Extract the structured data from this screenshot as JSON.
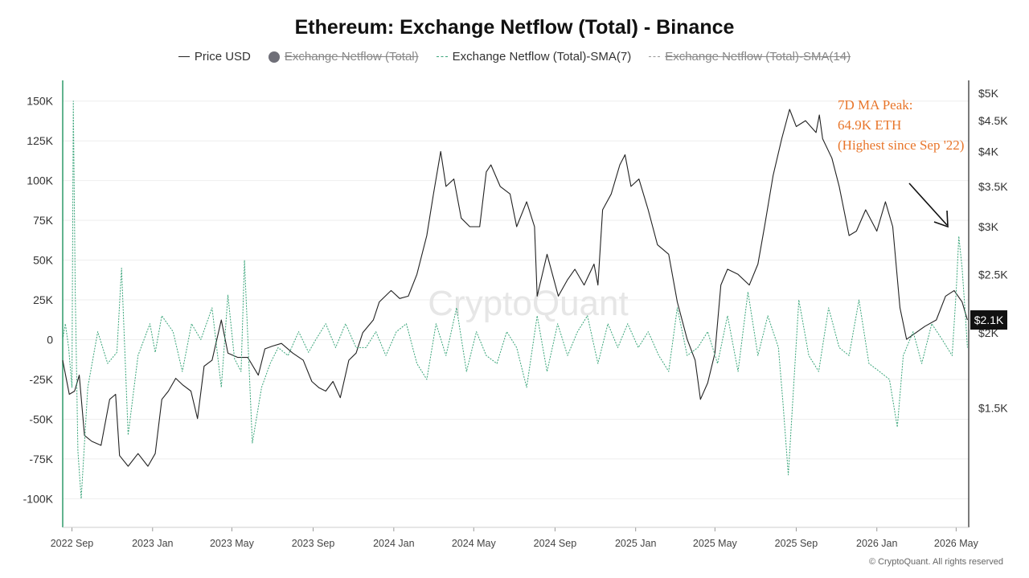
{
  "chart_data": {
    "type": "line",
    "title": "Ethereum: Exchange Netflow (Total) - Binance",
    "legend": [
      {
        "key": "price",
        "label": "Price USD",
        "style": "solid-line",
        "color": "#222222",
        "hidden": false
      },
      {
        "key": "netflow",
        "label": "Exchange Netflow (Total)",
        "style": "dot",
        "color": "#6f6f78",
        "hidden": true
      },
      {
        "key": "sma7",
        "label": "Exchange Netflow (Total)-SMA(7)",
        "style": "dashed-line",
        "color": "#3aa57a",
        "hidden": false
      },
      {
        "key": "sma14",
        "label": "Exchange Netflow (Total)-SMA(14)",
        "style": "dashed-line",
        "color": "#999999",
        "hidden": true
      }
    ],
    "legend_position": "top-center",
    "left_axis": {
      "ticks": [
        150000,
        125000,
        100000,
        75000,
        50000,
        25000,
        0,
        -25000,
        -50000,
        -75000,
        -100000
      ],
      "tick_labels": [
        "150K",
        "125K",
        "100K",
        "75K",
        "50K",
        "25K",
        "0",
        "-25K",
        "-50K",
        "-75K",
        "-100K"
      ],
      "range": [
        -118000,
        163000
      ]
    },
    "right_axis": {
      "scale": "log",
      "ticks": [
        5000,
        4500,
        4000,
        3500,
        3000,
        2500,
        2000,
        1500
      ],
      "tick_labels": [
        "$5K",
        "$4.5K",
        "$4K",
        "$3.5K",
        "$3K",
        "$2.5K",
        "$2K",
        "$1.5K"
      ],
      "range": [
        950,
        5250
      ]
    },
    "x_axis": {
      "range": [
        "2022-08-18",
        "2026-05-20"
      ],
      "ticks": [
        "2022-09-01",
        "2023-01-01",
        "2023-05-01",
        "2023-09-01",
        "2024-01-01",
        "2024-05-01",
        "2024-09-01",
        "2025-01-01",
        "2025-05-01",
        "2025-09-01",
        "2026-01-01",
        "2026-05-01"
      ],
      "tick_labels": [
        "2022 Sep",
        "2023 Jan",
        "2023 May",
        "2023 Sep",
        "2024 Jan",
        "2024 May",
        "2024 Sep",
        "2025 Jan",
        "2025 May",
        "2025 Sep",
        "2026 Jan",
        "2026 May"
      ]
    },
    "grid": true,
    "current_price_label": "$2.1K",
    "annotation": {
      "lines": [
        "7D MA Peak:",
        "64.9K ETH",
        "(Highest since Sep '22)"
      ],
      "color": "#e8752a"
    },
    "series": [
      {
        "name": "Price USD",
        "axis": "right",
        "color": "#222222",
        "x": [
          "2022-08-18",
          "2022-08-28",
          "2022-09-05",
          "2022-09-12",
          "2022-09-20",
          "2022-10-01",
          "2022-10-15",
          "2022-10-28",
          "2022-11-06",
          "2022-11-12",
          "2022-11-25",
          "2022-12-10",
          "2022-12-25",
          "2023-01-05",
          "2023-01-15",
          "2023-01-25",
          "2023-02-05",
          "2023-02-15",
          "2023-02-28",
          "2023-03-10",
          "2023-03-20",
          "2023-04-01",
          "2023-04-15",
          "2023-04-25",
          "2023-05-10",
          "2023-05-25",
          "2023-06-10",
          "2023-06-20",
          "2023-07-01",
          "2023-07-15",
          "2023-08-01",
          "2023-08-17",
          "2023-08-30",
          "2023-09-10",
          "2023-09-20",
          "2023-10-01",
          "2023-10-12",
          "2023-10-25",
          "2023-11-05",
          "2023-11-15",
          "2023-12-01",
          "2023-12-10",
          "2023-12-28",
          "2024-01-10",
          "2024-01-23",
          "2024-02-05",
          "2024-02-20",
          "2024-03-01",
          "2024-03-12",
          "2024-03-20",
          "2024-04-01",
          "2024-04-12",
          "2024-04-25",
          "2024-05-10",
          "2024-05-20",
          "2024-05-27",
          "2024-06-10",
          "2024-06-25",
          "2024-07-05",
          "2024-07-20",
          "2024-08-01",
          "2024-08-05",
          "2024-08-20",
          "2024-09-06",
          "2024-09-20",
          "2024-10-01",
          "2024-10-15",
          "2024-10-30",
          "2024-11-05",
          "2024-11-12",
          "2024-11-25",
          "2024-12-08",
          "2024-12-16",
          "2024-12-25",
          "2025-01-06",
          "2025-01-20",
          "2025-02-03",
          "2025-02-20",
          "2025-03-05",
          "2025-03-20",
          "2025-04-01",
          "2025-04-09",
          "2025-04-20",
          "2025-05-01",
          "2025-05-10",
          "2025-05-20",
          "2025-06-05",
          "2025-06-22",
          "2025-07-05",
          "2025-07-15",
          "2025-07-28",
          "2025-08-10",
          "2025-08-22",
          "2025-09-01",
          "2025-09-15",
          "2025-10-01",
          "2025-10-06",
          "2025-10-11",
          "2025-10-25",
          "2025-11-05",
          "2025-11-20",
          "2025-12-01",
          "2025-12-15",
          "2026-01-01",
          "2026-01-14",
          "2026-01-25",
          "2026-02-05",
          "2026-02-15",
          "2026-03-01",
          "2026-03-15",
          "2026-04-01",
          "2026-04-15",
          "2026-04-28",
          "2026-05-10",
          "2026-05-18"
        ],
        "y": [
          1800,
          1580,
          1600,
          1700,
          1350,
          1320,
          1300,
          1550,
          1580,
          1250,
          1200,
          1260,
          1200,
          1260,
          1550,
          1600,
          1680,
          1640,
          1600,
          1440,
          1760,
          1800,
          2100,
          1850,
          1820,
          1820,
          1700,
          1880,
          1900,
          1920,
          1850,
          1800,
          1660,
          1620,
          1600,
          1660,
          1560,
          1800,
          1850,
          2000,
          2100,
          2250,
          2350,
          2280,
          2300,
          2500,
          2900,
          3400,
          4000,
          3500,
          3600,
          3100,
          3000,
          3000,
          3700,
          3800,
          3500,
          3400,
          3000,
          3300,
          3000,
          2300,
          2700,
          2300,
          2450,
          2550,
          2400,
          2600,
          2400,
          3200,
          3400,
          3800,
          3950,
          3500,
          3600,
          3200,
          2800,
          2700,
          2250,
          1950,
          1800,
          1550,
          1650,
          1850,
          2400,
          2550,
          2500,
          2400,
          2600,
          3000,
          3650,
          4200,
          4700,
          4400,
          4500,
          4300,
          4600,
          4200,
          3900,
          3500,
          2900,
          2950,
          3200,
          2950,
          3300,
          3000,
          2200,
          1950,
          2000,
          2050,
          2100,
          2300,
          2350,
          2250,
          2100
        ]
      },
      {
        "name": "Exchange Netflow (Total)-SMA(7)",
        "axis": "left",
        "color": "#3aa57a",
        "x": [
          "2022-08-18",
          "2022-08-22",
          "2022-08-27",
          "2022-09-01",
          "2022-09-03",
          "2022-09-06",
          "2022-09-10",
          "2022-09-15",
          "2022-09-25",
          "2022-10-10",
          "2022-10-25",
          "2022-11-08",
          "2022-11-15",
          "2022-11-25",
          "2022-12-10",
          "2022-12-28",
          "2023-01-05",
          "2023-01-15",
          "2023-02-01",
          "2023-02-15",
          "2023-03-01",
          "2023-03-15",
          "2023-04-01",
          "2023-04-15",
          "2023-04-25",
          "2023-05-05",
          "2023-05-15",
          "2023-05-20",
          "2023-06-01",
          "2023-06-15",
          "2023-06-28",
          "2023-07-10",
          "2023-07-25",
          "2023-08-10",
          "2023-08-25",
          "2023-09-05",
          "2023-09-20",
          "2023-10-05",
          "2023-10-20",
          "2023-11-05",
          "2023-11-20",
          "2023-12-05",
          "2023-12-20",
          "2024-01-05",
          "2024-01-20",
          "2024-02-05",
          "2024-02-20",
          "2024-03-05",
          "2024-03-20",
          "2024-04-05",
          "2024-04-20",
          "2024-05-05",
          "2024-05-20",
          "2024-06-05",
          "2024-06-20",
          "2024-07-05",
          "2024-07-20",
          "2024-08-05",
          "2024-08-20",
          "2024-09-05",
          "2024-09-20",
          "2024-10-05",
          "2024-10-20",
          "2024-11-05",
          "2024-11-20",
          "2024-12-05",
          "2024-12-20",
          "2025-01-05",
          "2025-01-20",
          "2025-02-05",
          "2025-02-20",
          "2025-03-05",
          "2025-03-20",
          "2025-04-05",
          "2025-04-20",
          "2025-05-05",
          "2025-05-20",
          "2025-06-05",
          "2025-06-20",
          "2025-07-05",
          "2025-07-20",
          "2025-08-05",
          "2025-08-12",
          "2025-08-20",
          "2025-09-05",
          "2025-09-20",
          "2025-10-05",
          "2025-10-20",
          "2025-11-05",
          "2025-11-20",
          "2025-12-05",
          "2025-12-20",
          "2026-01-05",
          "2026-01-20",
          "2026-02-01",
          "2026-02-10",
          "2026-02-25",
          "2026-03-10",
          "2026-03-25",
          "2026-04-10",
          "2026-04-25",
          "2026-05-01",
          "2026-05-05",
          "2026-05-10",
          "2026-05-15",
          "2026-05-18"
        ],
        "y": [
          0,
          10000,
          -5000,
          -30000,
          150000,
          30000,
          -70000,
          -100000,
          -30000,
          5000,
          -15000,
          -8000,
          45000,
          -60000,
          -10000,
          10000,
          -8000,
          15000,
          5000,
          -20000,
          10000,
          0,
          20000,
          -30000,
          28000,
          -12000,
          -20000,
          50000,
          -65000,
          -30000,
          -15000,
          -5000,
          -10000,
          5000,
          -8000,
          0,
          10000,
          -5000,
          10000,
          -5000,
          -5000,
          5000,
          -10000,
          5000,
          10000,
          -15000,
          -25000,
          10000,
          -10000,
          20000,
          -20000,
          5000,
          -10000,
          -15000,
          5000,
          -5000,
          -30000,
          15000,
          -20000,
          10000,
          -10000,
          5000,
          15000,
          -15000,
          10000,
          -5000,
          10000,
          -5000,
          5000,
          -10000,
          -20000,
          20000,
          -10000,
          -5000,
          5000,
          -15000,
          15000,
          -20000,
          30000,
          -10000,
          15000,
          -5000,
          -40000,
          -85000,
          25000,
          -10000,
          -20000,
          20000,
          -5000,
          -10000,
          25000,
          -15000,
          -20000,
          -25000,
          -55000,
          -10000,
          5000,
          -15000,
          10000,
          0,
          -10000,
          30000,
          65000,
          45000,
          15000,
          -5000
        ]
      }
    ]
  }
}
